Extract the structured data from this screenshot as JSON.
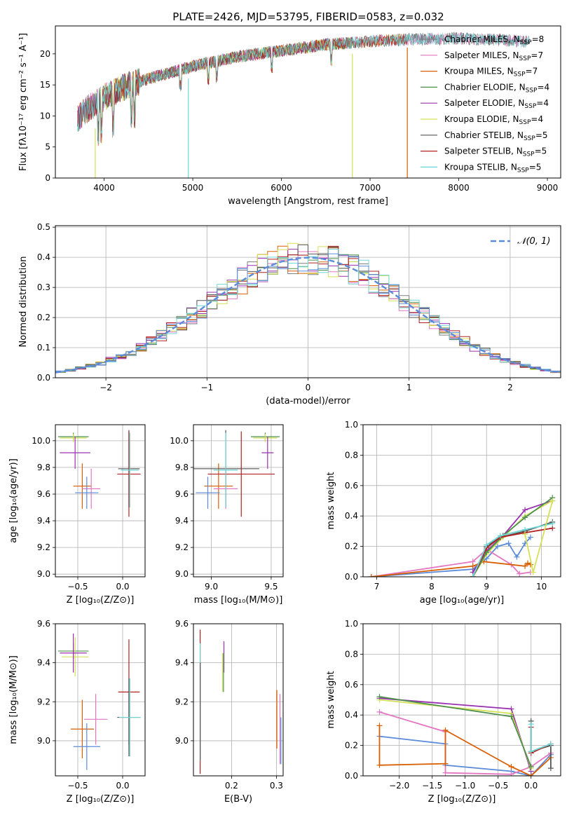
{
  "title": "PLATE=2426, MJD=53795, FIBERID=0583, z=0.032",
  "colors": {
    "chabrier_miles": "#7f7f7f",
    "salpeter_miles": "#e377c2",
    "kroupa_miles": "#d95f02",
    "chabrier_elodie": "#4d8f4d",
    "salpeter_elodie": "#9b30b0",
    "kroupa_elodie": "#d4e157",
    "chabrier_stelib": "#555555",
    "salpeter_stelib": "#b22222",
    "kroupa_stelib": "#6fd6d6",
    "blue_model": "#5b8bd9",
    "green_model": "#4a7a4a",
    "gaussian": "#5b8bd9"
  },
  "chart_data": [
    {
      "id": "spectrum",
      "type": "line",
      "xlabel": "wavelength [Angstrom, rest frame]",
      "ylabel": "Flux [fλ10⁻¹⁷ erg cm⁻² s⁻¹ A⁻¹]",
      "xlim": [
        3450,
        9150
      ],
      "ylim": [
        0,
        24.5
      ],
      "xticks": [
        "4000",
        "5000",
        "6000",
        "7000",
        "8000",
        "9000"
      ],
      "yticks": [
        "0",
        "5",
        "10",
        "15",
        "20"
      ],
      "continuum": {
        "x": [
          3700,
          3800,
          4000,
          4200,
          4500,
          5000,
          5500,
          6000,
          6500,
          7000,
          7400,
          8000,
          8500,
          9000
        ],
        "y": [
          9.5,
          11,
          13,
          14.5,
          16,
          18,
          19.5,
          20.5,
          21.5,
          22,
          22.3,
          22.5,
          22.2,
          21.8
        ]
      },
      "legend": [
        {
          "label": "Chabrier MILES, N",
          "sub": "SSP",
          "rest": "=8",
          "color": "chabrier_miles"
        },
        {
          "label": "Salpeter MILES, N",
          "sub": "SSP",
          "rest": "=7",
          "color": "salpeter_miles"
        },
        {
          "label": "Kroupa MILES, N",
          "sub": "SSP",
          "rest": "=7",
          "color": "kroupa_miles"
        },
        {
          "label": "Chabrier ELODIE, N",
          "sub": "SSP",
          "rest": "=4",
          "color": "chabrier_elodie"
        },
        {
          "label": "Salpeter ELODIE, N",
          "sub": "SSP",
          "rest": "=4",
          "color": "salpeter_elodie"
        },
        {
          "label": "Kroupa ELODIE, N",
          "sub": "SSP",
          "rest": "=4",
          "color": "kroupa_elodie"
        },
        {
          "label": "Chabrier STELIB, N",
          "sub": "SSP",
          "rest": "=5",
          "color": "chabrier_stelib"
        },
        {
          "label": "Salpeter STELIB, N",
          "sub": "SSP",
          "rest": "=5",
          "color": "salpeter_stelib"
        },
        {
          "label": "Kroupa STELIB, N",
          "sub": "SSP",
          "rest": "=5",
          "color": "kroupa_stelib"
        }
      ]
    },
    {
      "id": "residuals",
      "type": "line",
      "xlabel": "(data-model)/error",
      "ylabel": "Normed distribution",
      "xlim": [
        -2.5,
        2.5
      ],
      "ylim": [
        0,
        0.505
      ],
      "xticks": [
        "−2",
        "−1",
        "0",
        "1",
        "2"
      ],
      "yticks": [
        "0.0",
        "0.1",
        "0.2",
        "0.3",
        "0.4",
        "0.5"
      ],
      "gaussian_label": "𝒩(0, 1)"
    },
    {
      "id": "age_vs_Z",
      "type": "scatter",
      "xlabel": "Z [log₁₀(Z/Z⊙)]",
      "ylabel": "age [log₁₀(age/yr)]",
      "xlim": [
        -0.75,
        0.25
      ],
      "ylim": [
        8.98,
        10.12
      ],
      "xticks": [
        "−0.5",
        "0.0"
      ],
      "yticks": [
        "9.0",
        "9.2",
        "9.4",
        "9.6",
        "9.8",
        "10.0"
      ],
      "points": [
        {
          "x": -0.55,
          "xe": 0.17,
          "y": 10.03,
          "ye": 0.03,
          "color": "chabrier_elodie"
        },
        {
          "x": -0.55,
          "xe": 0.15,
          "y": 10.02,
          "ye": 0.03,
          "color": "kroupa_elodie"
        },
        {
          "x": -0.53,
          "xe": 0.17,
          "y": 9.91,
          "ye": 0.12,
          "color": "salpeter_elodie"
        },
        {
          "x": -0.45,
          "xe": 0.1,
          "y": 9.66,
          "ye": 0.17,
          "color": "kroupa_miles"
        },
        {
          "x": -0.35,
          "xe": 0.1,
          "y": 9.64,
          "ye": 0.15,
          "color": "salpeter_miles"
        },
        {
          "x": -0.4,
          "xe": 0.13,
          "y": 9.61,
          "ye": 0.12,
          "color": "blue_model"
        },
        {
          "x": 0.07,
          "xe": 0.12,
          "y": 9.79,
          "ye": 0.29,
          "color": "chabrier_stelib"
        },
        {
          "x": 0.07,
          "xe": 0.13,
          "y": 9.75,
          "ye": 0.32,
          "color": "salpeter_stelib"
        },
        {
          "x": 0.08,
          "xe": 0.1,
          "y": 9.78,
          "ye": 0.28,
          "color": "kroupa_stelib"
        }
      ]
    },
    {
      "id": "age_vs_mass",
      "type": "scatter",
      "xlabel": "mass [log₁₀(M/M⊙)]",
      "ylabel": "",
      "xlim": [
        8.85,
        9.6
      ],
      "ylim": [
        8.98,
        10.12
      ],
      "xticks": [
        "9.0",
        "9.5"
      ],
      "yticks": [
        "9.0",
        "9.2",
        "9.4",
        "9.6",
        "9.8",
        "10.0"
      ],
      "points": [
        {
          "x": 9.45,
          "xe": 0.12,
          "y": 10.03,
          "ye": 0.03,
          "color": "chabrier_elodie"
        },
        {
          "x": 9.45,
          "xe": 0.1,
          "y": 10.02,
          "ye": 0.03,
          "color": "kroupa_elodie"
        },
        {
          "x": 9.47,
          "xe": 0.05,
          "y": 9.91,
          "ye": 0.12,
          "color": "salpeter_elodie"
        },
        {
          "x": 9.06,
          "xe": 0.12,
          "y": 9.66,
          "ye": 0.17,
          "color": "kroupa_miles"
        },
        {
          "x": 9.12,
          "xe": 0.1,
          "y": 9.64,
          "ye": 0.15,
          "color": "salpeter_miles"
        },
        {
          "x": 8.97,
          "xe": 0.1,
          "y": 9.61,
          "ye": 0.12,
          "color": "blue_model"
        },
        {
          "x": 9.12,
          "xe": 0.28,
          "y": 9.79,
          "ye": 0.29,
          "color": "chabrier_stelib"
        },
        {
          "x": 9.25,
          "xe": 0.28,
          "y": 9.75,
          "ye": 0.32,
          "color": "salpeter_stelib"
        },
        {
          "x": 9.12,
          "xe": 0.1,
          "y": 9.78,
          "ye": 0.28,
          "color": "kroupa_stelib"
        }
      ]
    },
    {
      "id": "mass_weight_vs_age",
      "type": "line",
      "xlabel": "age [log₁₀(age/yr)]",
      "ylabel": "mass weight",
      "xlim": [
        6.75,
        10.35
      ],
      "ylim": [
        0,
        1.0
      ],
      "xticks": [
        "7",
        "8",
        "9",
        "10"
      ],
      "yticks": [
        "0.0",
        "0.2",
        "0.4",
        "0.6",
        "0.8",
        "1.0"
      ],
      "series": [
        {
          "color": "blue_model",
          "x": [
            6.9,
            8.75,
            9.0,
            9.2,
            9.4,
            9.55,
            9.7,
            9.8
          ],
          "y": [
            0.0,
            0.05,
            0.12,
            0.2,
            0.22,
            0.13,
            0.22,
            0.26
          ]
        },
        {
          "color": "salpeter_miles",
          "x": [
            6.9,
            8.75,
            9.0,
            9.45,
            9.6,
            9.8
          ],
          "y": [
            0.0,
            0.1,
            0.18,
            0.08,
            0.02,
            0.03
          ]
        },
        {
          "color": "kroupa_miles",
          "x": [
            6.9,
            8.75,
            8.95,
            9.7,
            9.75,
            9.8
          ],
          "y": [
            0.0,
            0.07,
            0.1,
            0.07,
            0.09,
            0.08
          ]
        },
        {
          "color": "salpeter_elodie",
          "x": [
            8.75,
            9.0,
            9.3,
            9.7,
            10.2
          ],
          "y": [
            0.03,
            0.17,
            0.27,
            0.44,
            0.5
          ]
        },
        {
          "color": "kroupa_elodie",
          "x": [
            8.75,
            9.0,
            9.3,
            9.7,
            10.2
          ],
          "y": [
            0.0,
            0.15,
            0.26,
            0.4,
            0.5
          ]
        },
        {
          "color": "chabrier_elodie",
          "x": [
            8.75,
            9.0,
            9.3,
            9.7,
            10.2
          ],
          "y": [
            0.0,
            0.16,
            0.27,
            0.39,
            0.52
          ]
        },
        {
          "color": "chabrier_stelib",
          "x": [
            8.75,
            9.0,
            9.25,
            9.7,
            10.2
          ],
          "y": [
            0.0,
            0.2,
            0.26,
            0.3,
            0.36
          ]
        },
        {
          "color": "salpeter_stelib",
          "x": [
            8.75,
            9.0,
            9.25,
            9.7,
            10.2
          ],
          "y": [
            0.0,
            0.19,
            0.26,
            0.29,
            0.32
          ]
        },
        {
          "color": "kroupa_stelib",
          "x": [
            8.75,
            9.0,
            9.25,
            9.7,
            10.2
          ],
          "y": [
            0.0,
            0.21,
            0.27,
            0.31,
            0.35
          ]
        },
        {
          "color": "kroupa_elodie",
          "x": [
            9.7,
            9.85,
            10.2
          ],
          "y": [
            0.28,
            0.03,
            0.5
          ]
        }
      ]
    },
    {
      "id": "mass_vs_Z",
      "type": "scatter",
      "xlabel": "Z [log₁₀(Z/Z⊙)]",
      "ylabel": "mass [log₁₀(M/M⊙)]",
      "xlim": [
        -0.75,
        0.25
      ],
      "ylim": [
        8.82,
        9.6
      ],
      "xticks": [
        "−0.5",
        "0.0"
      ],
      "yticks": [
        "9.0",
        "9.2",
        "9.4",
        "9.6"
      ],
      "points": [
        {
          "x": -0.55,
          "xe": 0.17,
          "y": 9.46,
          "ye": 0.04,
          "color": "chabrier_elodie"
        },
        {
          "x": -0.53,
          "xe": 0.15,
          "y": 9.43,
          "ye": 0.1,
          "color": "kroupa_elodie"
        },
        {
          "x": -0.55,
          "xe": 0.15,
          "y": 9.45,
          "ye": 0.1,
          "color": "salpeter_elodie"
        },
        {
          "x": -0.45,
          "xe": 0.13,
          "y": 9.06,
          "ye": 0.15,
          "color": "kroupa_miles"
        },
        {
          "x": -0.3,
          "xe": 0.13,
          "y": 9.11,
          "ye": 0.13,
          "color": "salpeter_miles"
        },
        {
          "x": -0.4,
          "xe": 0.15,
          "y": 8.97,
          "ye": 0.12,
          "color": "blue_model"
        },
        {
          "x": 0.07,
          "xe": 0.12,
          "y": 9.25,
          "ye": 0.27,
          "color": "salpeter_stelib"
        },
        {
          "x": 0.07,
          "xe": 0.13,
          "y": 9.12,
          "ye": 0.2,
          "color": "chabrier_stelib"
        },
        {
          "x": 0.08,
          "xe": 0.12,
          "y": 9.12,
          "ye": 0.2,
          "color": "kroupa_stelib"
        }
      ]
    },
    {
      "id": "mass_vs_EBV",
      "type": "scatter",
      "xlabel": "E(B-V)",
      "ylabel": "",
      "xlim": [
        0.115,
        0.315
      ],
      "ylim": [
        8.82,
        9.6
      ],
      "xticks": [
        "0.2",
        "0.3"
      ],
      "yticks": [
        "9.0",
        "9.2",
        "9.4",
        "9.6"
      ],
      "points": [
        {
          "x": 0.13,
          "y": 9.2,
          "ye": 0.37,
          "color": "salpeter_stelib"
        },
        {
          "x": 0.13,
          "y": 9.2,
          "ye": 0.3,
          "color": "kroupa_stelib"
        },
        {
          "x": 0.13,
          "y": 9.15,
          "ye": 0.25,
          "color": "chabrier_stelib"
        },
        {
          "x": 0.183,
          "y": 9.43,
          "ye": 0.08,
          "color": "salpeter_elodie"
        },
        {
          "x": 0.182,
          "y": 9.35,
          "ye": 0.1,
          "color": "chabrier_elodie"
        },
        {
          "x": 0.18,
          "y": 9.35,
          "ye": 0.1,
          "color": "kroupa_elodie"
        },
        {
          "x": 0.301,
          "y": 9.11,
          "ye": 0.15,
          "color": "kroupa_miles"
        },
        {
          "x": 0.308,
          "y": 9.06,
          "ye": 0.18,
          "color": "salpeter_miles"
        },
        {
          "x": 0.31,
          "y": 9.0,
          "ye": 0.12,
          "color": "blue_model"
        }
      ]
    },
    {
      "id": "mass_weight_vs_Z",
      "type": "line",
      "xlabel": "Z [log₁₀(Z/Z⊙)]",
      "ylabel": "mass weight",
      "xlim": [
        -2.55,
        0.45
      ],
      "ylim": [
        0,
        1.0
      ],
      "xticks": [
        "−2.0",
        "−1.5",
        "−1.0",
        "−0.5",
        "0.0"
      ],
      "yticks": [
        "0.0",
        "0.2",
        "0.4",
        "0.6",
        "0.8",
        "1.0"
      ],
      "series": [
        {
          "color": "blue_model",
          "x": [
            -2.3,
            -1.3,
            -1.3,
            -0.3,
            0.0,
            0.3
          ],
          "y": [
            0.26,
            0.21,
            0.07,
            0.03,
            0.0,
            0.14
          ]
        },
        {
          "color": "salpeter_miles",
          "x": [
            -2.3,
            -1.3,
            -1.3,
            -0.3,
            0.0,
            0.3
          ],
          "y": [
            0.42,
            0.29,
            0.02,
            0.01,
            0.06,
            0.15
          ]
        },
        {
          "color": "kroupa_miles",
          "x": [
            -2.3,
            -2.3,
            -1.3,
            -1.3,
            -0.3,
            0.0,
            0.3
          ],
          "y": [
            0.33,
            0.07,
            0.08,
            0.3,
            0.06,
            0.0,
            0.12
          ]
        },
        {
          "color": "salpeter_elodie",
          "x": [
            -2.3,
            -0.3,
            0.0
          ],
          "y": [
            0.51,
            0.44,
            0.03
          ]
        },
        {
          "color": "kroupa_elodie",
          "x": [
            -2.3,
            -0.3,
            0.0
          ],
          "y": [
            0.5,
            0.41,
            0.05
          ]
        },
        {
          "color": "chabrier_elodie",
          "x": [
            -2.3,
            -0.3,
            0.0
          ],
          "y": [
            0.52,
            0.39,
            0.06
          ]
        },
        {
          "color": "chabrier_stelib",
          "x": [
            0.0,
            0.0,
            0.3,
            0.3
          ],
          "y": [
            0.36,
            0.16,
            0.2,
            0.05
          ]
        },
        {
          "color": "salpeter_stelib",
          "x": [
            0.0,
            0.0,
            0.3
          ],
          "y": [
            0.32,
            0.15,
            0.21
          ]
        },
        {
          "color": "kroupa_stelib",
          "x": [
            0.0,
            0.0,
            0.3
          ],
          "y": [
            0.34,
            0.16,
            0.21
          ]
        }
      ]
    }
  ]
}
